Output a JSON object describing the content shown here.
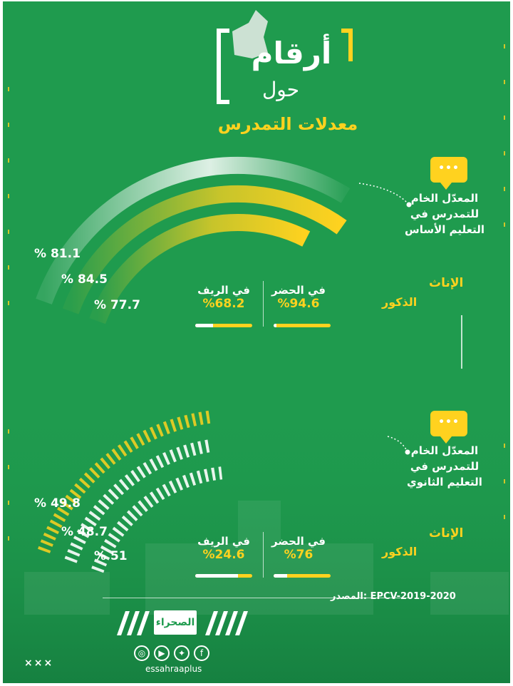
{
  "header": {
    "title": "أرقام",
    "subtitle": "حول",
    "topic": "معدلات التمدرس"
  },
  "primary": {
    "description": "المعدّل الخام للتمدرس في التعليم الأساس",
    "legend_female": "الإناث",
    "legend_male": "الذكور",
    "values_ltr": [
      "% 81.1",
      "% 84.5",
      "% 77.7"
    ],
    "arcs": [
      {
        "series": "total",
        "percent": 81.1
      },
      {
        "series": "female",
        "percent": 84.5
      },
      {
        "series": "male",
        "percent": 77.7
      }
    ],
    "urban": {
      "label": "في الحضر",
      "value": "%94.6",
      "percent": 94.6
    },
    "rural": {
      "label": "في الريف",
      "value": "%68.2",
      "percent": 68.2
    }
  },
  "secondary": {
    "description": "المعدّل الخام للتمدرس في التعليم الثانوي",
    "legend_female": "الإناث",
    "legend_male": "الذكور",
    "values_ltr": [
      "% 49.8",
      "% 48.7",
      "% 51"
    ],
    "arcs": [
      {
        "series": "total",
        "percent": 49.8
      },
      {
        "series": "female",
        "percent": 48.7
      },
      {
        "series": "male",
        "percent": 51
      }
    ],
    "urban": {
      "label": "في الحضر",
      "value": "%76",
      "percent": 76
    },
    "rural": {
      "label": "في الريف",
      "value": "%24.6",
      "percent": 24.6
    }
  },
  "footer": {
    "source": "المصدر: EPCV-2019-2020",
    "brand": "الصحراء",
    "handle": "essahraaplus",
    "marks": "×××",
    "social_icons": [
      "web-icon",
      "youtube-icon",
      "twitter-icon",
      "facebook-icon"
    ]
  },
  "colors": {
    "background": "#1f9b4e",
    "accent": "#ffd21f",
    "text": "#ffffff"
  },
  "bubble_dots": "•••"
}
